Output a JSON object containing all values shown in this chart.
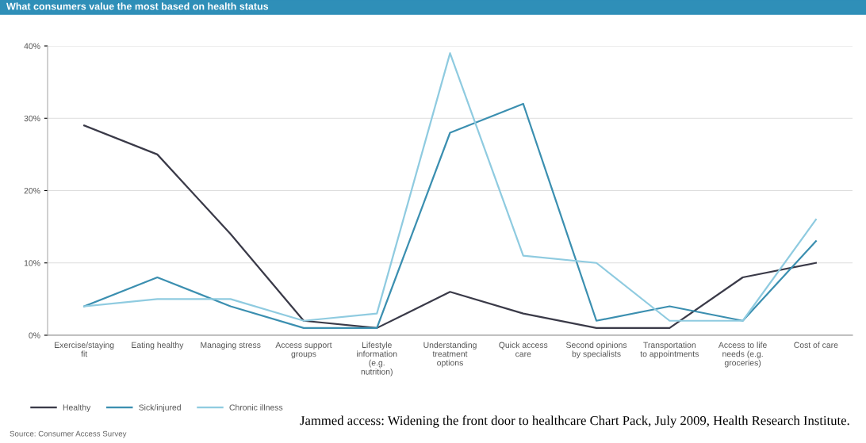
{
  "chart_data": {
    "type": "line",
    "title": "What consumers value the most based on health status",
    "categories": [
      "Exercise/staying fit",
      "Eating healthy",
      "Managing stress",
      "Access support groups",
      "Lifestyle information (e.g. nutrition)",
      "Understanding treatment options",
      "Quick access care",
      "Second opinions by specialists",
      "Transportation to appointments",
      "Access to life needs (e.g. groceries)",
      "Cost of care"
    ],
    "series": [
      {
        "name": "Healthy",
        "color": "#3a3a48",
        "values": [
          29,
          25,
          14,
          2,
          1,
          6,
          3,
          1,
          1,
          8,
          10
        ]
      },
      {
        "name": "Sick/injured",
        "color": "#3b8fb0",
        "values": [
          4,
          8,
          4,
          1,
          1,
          28,
          32,
          2,
          4,
          2,
          13
        ]
      },
      {
        "name": "Chronic illness",
        "color": "#8fcbe0",
        "values": [
          4,
          5,
          5,
          2,
          3,
          39,
          11,
          10,
          2,
          2,
          16
        ]
      }
    ],
    "ylim": [
      0,
      40
    ],
    "yticks": [
      {
        "value": 0,
        "label": "0%"
      },
      {
        "value": 10,
        "label": "10%"
      },
      {
        "value": 20,
        "label": "20%"
      },
      {
        "value": 30,
        "label": "30%"
      },
      {
        "value": 40,
        "label": "40%"
      }
    ],
    "grid": "y",
    "legend": "bottom left",
    "marker": "none",
    "line_style": "solid",
    "annotations": [
      "Source: Consumer Access Survey",
      "Jammed access: Widening the front door to healthcare Chart Pack, July 2009, Health Research Institute."
    ]
  }
}
